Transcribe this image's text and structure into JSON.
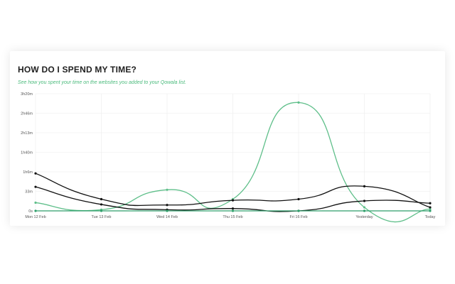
{
  "card": {
    "title": "HOW DO I SPEND MY TIME?",
    "subtitle": "See how you spent your time on the websites you added to your Qowala list."
  },
  "chart_data": {
    "type": "line",
    "categories": [
      "Mon 12 Feb",
      "Tue 13 Feb",
      "Wed 14 Feb",
      "Thu 15 Feb",
      "Fri 16 Feb",
      "Yesterday",
      "Today"
    ],
    "y_ticks": [
      "0s",
      "33m",
      "1h6m",
      "1h40m",
      "2h13m",
      "2h46m",
      "3h20m"
    ],
    "ylim": [
      0,
      200
    ],
    "y_unit": "minutes",
    "grid": true,
    "series": [
      {
        "color": "#5fbf8a",
        "values": [
          14,
          2,
          36,
          20,
          185,
          6,
          3
        ]
      },
      {
        "color": "#111111",
        "values": [
          64,
          20,
          10,
          18,
          20,
          42,
          6
        ]
      },
      {
        "color": "#111111",
        "values": [
          41,
          11,
          2,
          4,
          0,
          17,
          13
        ]
      },
      {
        "color": "#2e9e6a",
        "values": [
          0,
          0,
          0,
          0,
          0,
          0,
          0
        ]
      }
    ]
  }
}
